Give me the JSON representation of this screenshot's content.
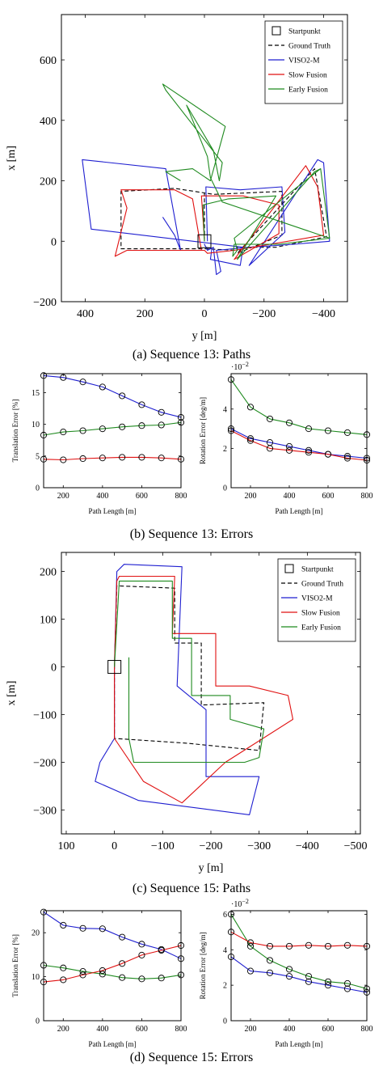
{
  "chart_data": [
    {
      "id": "a",
      "type": "line",
      "caption": "(a) Sequence 13: Paths",
      "xlabel": "y [m]",
      "ylabel": "x [m]",
      "xlim": [
        480,
        -480
      ],
      "ylim": [
        -200,
        750
      ],
      "xticks": [
        400,
        200,
        0,
        -200,
        -400
      ],
      "xtick_labels": [
        "400",
        "200",
        "0",
        "−200",
        "−400"
      ],
      "yticks": [
        -200,
        0,
        200,
        400,
        600
      ],
      "ytick_labels": [
        "−200",
        "0",
        "200",
        "400",
        "600"
      ],
      "legend_position": "top-right",
      "start_marker": {
        "name": "Startpunkt",
        "y": 0,
        "x": 0
      },
      "series": [
        {
          "name": "Ground Truth",
          "color": "#000000",
          "dash": true,
          "points": [
            [
              0,
              0
            ],
            [
              0,
              160
            ],
            [
              -30,
              155
            ],
            [
              -260,
              165
            ],
            [
              -260,
              20
            ],
            [
              -110,
              -40
            ],
            [
              -360,
              230
            ],
            [
              -370,
              240
            ],
            [
              -410,
              15
            ],
            [
              -240,
              -20
            ],
            [
              -110,
              -20
            ],
            [
              -110,
              -30
            ],
            [
              0,
              -25
            ],
            [
              280,
              -25
            ],
            [
              280,
              165
            ],
            [
              100,
              175
            ],
            [
              0,
              160
            ]
          ]
        },
        {
          "name": "VISO2-M",
          "color": "#1f1fd0",
          "points": [
            [
              -10,
              0
            ],
            [
              -5,
              180
            ],
            [
              -120,
              170
            ],
            [
              -260,
              180
            ],
            [
              -270,
              30
            ],
            [
              -150,
              -80
            ],
            [
              -380,
              270
            ],
            [
              -400,
              260
            ],
            [
              -420,
              0
            ],
            [
              -300,
              -10
            ],
            [
              -150,
              -20
            ],
            [
              -40,
              -30
            ],
            [
              -55,
              -100
            ],
            [
              -40,
              -110
            ],
            [
              -30,
              -20
            ],
            [
              -10,
              -30
            ],
            [
              0,
              -10
            ],
            [
              -5,
              -20
            ],
            [
              -25,
              -25
            ],
            [
              -20,
              -60
            ],
            [
              -120,
              -80
            ],
            [
              -130,
              -20
            ],
            [
              380,
              40
            ],
            [
              410,
              270
            ],
            [
              130,
              240
            ],
            [
              80,
              -30
            ],
            [
              100,
              20
            ],
            [
              140,
              80
            ]
          ]
        },
        {
          "name": "Slow Fusion",
          "color": "#e01010",
          "points": [
            [
              0,
              5
            ],
            [
              10,
              150
            ],
            [
              -130,
              150
            ],
            [
              -250,
              120
            ],
            [
              -250,
              25
            ],
            [
              -100,
              -60
            ],
            [
              -340,
              250
            ],
            [
              -380,
              180
            ],
            [
              -400,
              20
            ],
            [
              -100,
              -30
            ],
            [
              -10,
              -40
            ],
            [
              0,
              -30
            ],
            [
              260,
              -30
            ],
            [
              300,
              -50
            ],
            [
              260,
              110
            ],
            [
              280,
              170
            ],
            [
              100,
              170
            ],
            [
              40,
              140
            ],
            [
              10,
              -30
            ]
          ]
        },
        {
          "name": "Early Fusion",
          "color": "#1f8a1f",
          "points": [
            [
              0,
              0
            ],
            [
              5,
              120
            ],
            [
              -80,
              140
            ],
            [
              -240,
              150
            ],
            [
              -110,
              -60
            ],
            [
              -370,
              230
            ],
            [
              -390,
              240
            ],
            [
              -420,
              10
            ],
            [
              -250,
              -10
            ],
            [
              -100,
              -10
            ],
            [
              -95,
              -50
            ],
            [
              -110,
              -30
            ],
            [
              -100,
              10
            ],
            [
              -300,
              170
            ],
            [
              -390,
              240
            ],
            [
              -420,
              10
            ],
            [
              -60,
              130
            ],
            [
              -20,
              210
            ],
            [
              -10,
              280
            ],
            [
              60,
              450
            ],
            [
              -30,
              300
            ],
            [
              -50,
              200
            ],
            [
              -60,
              260
            ],
            [
              130,
              500
            ],
            [
              140,
              520
            ],
            [
              -70,
              380
            ],
            [
              -20,
              200
            ],
            [
              40,
              240
            ],
            [
              130,
              230
            ],
            [
              80,
              200
            ]
          ]
        }
      ]
    },
    {
      "id": "b1",
      "type": "line",
      "xlabel": "Path Length [m]",
      "ylabel": "Translation Error [%]",
      "xlim": [
        100,
        800
      ],
      "ylim": [
        0,
        18
      ],
      "xticks": [
        200,
        400,
        600,
        800
      ],
      "xtick_labels": [
        "200",
        "400",
        "600",
        "800"
      ],
      "yticks": [
        0,
        5,
        10,
        15
      ],
      "ytick_labels": [
        "0",
        "5",
        "10",
        "15"
      ],
      "x": [
        100,
        200,
        300,
        400,
        500,
        600,
        700,
        800
      ],
      "series": [
        {
          "name": "VISO2-M",
          "color": "#1f1fd0",
          "values": [
            17.7,
            17.4,
            16.7,
            15.9,
            14.5,
            13.1,
            11.9,
            11.1
          ]
        },
        {
          "name": "Early Fusion",
          "color": "#1f8a1f",
          "values": [
            8.3,
            8.8,
            9.0,
            9.3,
            9.6,
            9.8,
            9.9,
            10.3
          ]
        },
        {
          "name": "Slow Fusion",
          "color": "#e01010",
          "values": [
            4.5,
            4.4,
            4.6,
            4.7,
            4.8,
            4.8,
            4.7,
            4.5
          ]
        }
      ]
    },
    {
      "id": "b2",
      "type": "line",
      "xlabel": "Path Length [m]",
      "ylabel": "Rotation Error [deg/m]",
      "scale_label": "·10",
      "scale_exp": "−2",
      "xlim": [
        100,
        800
      ],
      "ylim": [
        0,
        5.8
      ],
      "xticks": [
        200,
        400,
        600,
        800
      ],
      "xtick_labels": [
        "200",
        "400",
        "600",
        "800"
      ],
      "yticks": [
        0,
        2,
        4
      ],
      "ytick_labels": [
        "0",
        "2",
        "4"
      ],
      "x": [
        100,
        200,
        300,
        400,
        500,
        600,
        700,
        800
      ],
      "series": [
        {
          "name": "Early Fusion",
          "color": "#1f8a1f",
          "values": [
            5.5,
            4.1,
            3.5,
            3.3,
            3.0,
            2.9,
            2.8,
            2.7
          ]
        },
        {
          "name": "VISO2-M",
          "color": "#1f1fd0",
          "values": [
            3.0,
            2.5,
            2.3,
            2.1,
            1.9,
            1.7,
            1.6,
            1.5
          ]
        },
        {
          "name": "Slow Fusion",
          "color": "#e01010",
          "values": [
            2.9,
            2.4,
            2.0,
            1.9,
            1.8,
            1.7,
            1.5,
            1.4
          ]
        }
      ]
    },
    {
      "id": "b_caption",
      "caption": "(b) Sequence 13: Errors"
    },
    {
      "id": "c",
      "type": "line",
      "caption": "(c) Sequence 15: Paths",
      "xlabel": "y [m]",
      "ylabel": "x [m]",
      "xlim": [
        110,
        -510
      ],
      "ylim": [
        -350,
        240
      ],
      "xticks": [
        100,
        0,
        -100,
        -200,
        -300,
        -400,
        -500
      ],
      "xtick_labels": [
        "100",
        "0",
        "−100",
        "−200",
        "−300",
        "−400",
        "−500"
      ],
      "yticks": [
        -300,
        -200,
        -100,
        0,
        100,
        200
      ],
      "ytick_labels": [
        "−300",
        "−200",
        "−100",
        "0",
        "100",
        "200"
      ],
      "legend_position": "top-right",
      "start_marker": {
        "name": "Startpunkt",
        "y": 0,
        "x": 0
      },
      "series": [
        {
          "name": "Ground Truth",
          "color": "#000000",
          "dash": true,
          "points": [
            [
              0,
              0
            ],
            [
              -5,
              170
            ],
            [
              -125,
              165
            ],
            [
              -125,
              50
            ],
            [
              -180,
              50
            ],
            [
              -180,
              -80
            ],
            [
              -310,
              -75
            ],
            [
              -300,
              -175
            ],
            [
              -150,
              -160
            ],
            [
              0,
              -150
            ],
            [
              0,
              0
            ]
          ]
        },
        {
          "name": "VISO2-M",
          "color": "#1f1fd0",
          "points": [
            [
              0,
              0
            ],
            [
              -5,
              200
            ],
            [
              -20,
              215
            ],
            [
              -140,
              210
            ],
            [
              -130,
              -40
            ],
            [
              -190,
              -90
            ],
            [
              -190,
              -230
            ],
            [
              -300,
              -230
            ],
            [
              -280,
              -310
            ],
            [
              -50,
              -280
            ],
            [
              40,
              -240
            ],
            [
              30,
              -200
            ],
            [
              0,
              -150
            ],
            [
              0,
              0
            ]
          ]
        },
        {
          "name": "Slow Fusion",
          "color": "#e01010",
          "points": [
            [
              0,
              0
            ],
            [
              -5,
              180
            ],
            [
              -10,
              190
            ],
            [
              -125,
              190
            ],
            [
              -120,
              70
            ],
            [
              -210,
              70
            ],
            [
              -210,
              -40
            ],
            [
              -280,
              -40
            ],
            [
              -360,
              -60
            ],
            [
              -370,
              -110
            ],
            [
              -230,
              -200
            ],
            [
              -140,
              -285
            ],
            [
              -60,
              -240
            ],
            [
              0,
              -150
            ],
            [
              0,
              0
            ]
          ]
        },
        {
          "name": "Early Fusion",
          "color": "#1f8a1f",
          "points": [
            [
              -30,
              20
            ],
            [
              -30,
              -150
            ],
            [
              -40,
              -200
            ],
            [
              -120,
              -200
            ],
            [
              -270,
              -200
            ],
            [
              -300,
              -190
            ],
            [
              -310,
              -130
            ],
            [
              -240,
              -110
            ],
            [
              -240,
              -60
            ],
            [
              -160,
              -60
            ],
            [
              -160,
              60
            ],
            [
              -120,
              60
            ],
            [
              -120,
              180
            ],
            [
              -10,
              180
            ],
            [
              0,
              0
            ]
          ]
        }
      ]
    },
    {
      "id": "d1",
      "type": "line",
      "xlabel": "Path Length [m]",
      "ylabel": "Translation Error [%]",
      "xlim": [
        100,
        800
      ],
      "ylim": [
        0,
        25
      ],
      "xticks": [
        200,
        400,
        600,
        800
      ],
      "xtick_labels": [
        "200",
        "400",
        "600",
        "800"
      ],
      "yticks": [
        0,
        10,
        20
      ],
      "ytick_labels": [
        "0",
        "10",
        "20"
      ],
      "x": [
        100,
        200,
        300,
        400,
        500,
        600,
        700,
        800
      ],
      "series": [
        {
          "name": "VISO2-M",
          "color": "#1f1fd0",
          "values": [
            24.7,
            21.7,
            21.0,
            20.9,
            19.0,
            17.4,
            16.2,
            14.1
          ]
        },
        {
          "name": "Early Fusion",
          "color": "#1f8a1f",
          "values": [
            12.6,
            12.0,
            11.2,
            10.6,
            9.8,
            9.5,
            9.7,
            10.4
          ]
        },
        {
          "name": "Slow Fusion",
          "color": "#e01010",
          "values": [
            8.8,
            9.3,
            10.4,
            11.4,
            13.0,
            14.9,
            16.0,
            17.1
          ]
        }
      ]
    },
    {
      "id": "d2",
      "type": "line",
      "xlabel": "Path Length [m]",
      "ylabel": "Rotation Error [deg/m]",
      "scale_label": "·10",
      "scale_exp": "−2",
      "xlim": [
        100,
        800
      ],
      "ylim": [
        0,
        6.2
      ],
      "xticks": [
        200,
        400,
        600,
        800
      ],
      "xtick_labels": [
        "200",
        "400",
        "600",
        "800"
      ],
      "yticks": [
        0,
        2,
        4,
        6
      ],
      "ytick_labels": [
        "0",
        "2",
        "4",
        "6"
      ],
      "x": [
        100,
        200,
        300,
        400,
        500,
        600,
        700,
        800
      ],
      "series": [
        {
          "name": "Early Fusion",
          "color": "#1f8a1f",
          "values": [
            6.0,
            4.2,
            3.4,
            2.9,
            2.5,
            2.2,
            2.1,
            1.8
          ]
        },
        {
          "name": "Slow Fusion",
          "color": "#e01010",
          "values": [
            5.0,
            4.4,
            4.2,
            4.2,
            4.25,
            4.2,
            4.25,
            4.2
          ]
        },
        {
          "name": "VISO2-M",
          "color": "#1f1fd0",
          "values": [
            3.6,
            2.8,
            2.7,
            2.5,
            2.2,
            2.0,
            1.8,
            1.6
          ]
        }
      ]
    },
    {
      "id": "d_caption",
      "caption": "(d) Sequence 15: Errors"
    }
  ]
}
